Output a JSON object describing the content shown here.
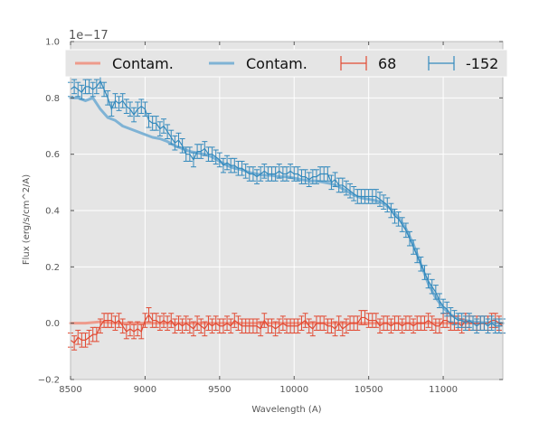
{
  "chart_data": {
    "type": "line",
    "title": "",
    "xlabel": "Wavelength (A)",
    "ylabel": "Flux (erg/s/cm^2/A)",
    "y_offset_label": "1e−17",
    "xlim": [
      8500,
      11400
    ],
    "ylim": [
      -0.2,
      1.0
    ],
    "xticks": [
      8500,
      9000,
      9500,
      10000,
      10500,
      11000
    ],
    "yticks": [
      -0.2,
      0.0,
      0.2,
      0.4,
      0.6,
      0.8,
      1.0
    ],
    "xtick_labels": [
      "8500",
      "9000",
      "9500",
      "10000",
      "10500",
      "11000"
    ],
    "ytick_labels": [
      "−0.2",
      "0.0",
      "0.2",
      "0.4",
      "0.6",
      "0.8",
      "1.0"
    ],
    "grid": true,
    "legend_position": "top",
    "colors": {
      "red": "#e24a33",
      "blue": "#348abd",
      "red_light": "#ee9b8c",
      "blue_light": "#7fb3d5",
      "plot_bg": "#e5e5e5",
      "grid": "#ffffff",
      "legend_bg": "#e5e5e5"
    },
    "series": [
      {
        "name": "Contam.",
        "kind": "contam",
        "color": "#ee9b8c",
        "x": [
          8500,
          8600,
          8700,
          8800,
          9000,
          9500,
          10000,
          10500,
          11000,
          11400
        ],
        "y": [
          0.0,
          0.0,
          0.005,
          0.0,
          0.0,
          0.0,
          0.0,
          0.0,
          0.0,
          0.0
        ]
      },
      {
        "name": "Contam.",
        "kind": "contam",
        "color": "#7fb3d5",
        "x": [
          8500,
          8550,
          8600,
          8650,
          8700,
          8750,
          8800,
          8850,
          8900,
          8950,
          9000,
          9050,
          9100,
          9150,
          9200,
          9250,
          9300,
          9350,
          9400,
          9450,
          9500,
          9550,
          9600,
          9650,
          9700,
          9750,
          9800,
          9850,
          9900,
          9950,
          10000,
          10050,
          10100,
          10150,
          10200,
          10250,
          10300,
          10350,
          10400,
          10450,
          10500,
          10550,
          10600,
          10650,
          10700,
          10750,
          10800,
          10850,
          10900,
          10950,
          11000,
          11050,
          11100,
          11150,
          11200,
          11250,
          11300,
          11350,
          11400
        ],
        "y": [
          0.8,
          0.8,
          0.79,
          0.8,
          0.76,
          0.73,
          0.72,
          0.7,
          0.69,
          0.68,
          0.67,
          0.66,
          0.655,
          0.645,
          0.63,
          0.62,
          0.61,
          0.605,
          0.6,
          0.59,
          0.575,
          0.56,
          0.55,
          0.545,
          0.535,
          0.53,
          0.525,
          0.525,
          0.52,
          0.52,
          0.515,
          0.51,
          0.505,
          0.505,
          0.5,
          0.495,
          0.485,
          0.47,
          0.455,
          0.445,
          0.44,
          0.435,
          0.425,
          0.405,
          0.375,
          0.335,
          0.28,
          0.21,
          0.14,
          0.09,
          0.055,
          0.03,
          0.015,
          0.01,
          0.005,
          0.003,
          0.002,
          0.001,
          0.0
        ]
      },
      {
        "name": "68",
        "kind": "errorbar",
        "color": "#e24a33",
        "x": [
          8500,
          8525,
          8550,
          8575,
          8600,
          8625,
          8650,
          8675,
          8700,
          8725,
          8750,
          8775,
          8800,
          8825,
          8850,
          8875,
          8900,
          8925,
          8950,
          8975,
          9000,
          9025,
          9050,
          9075,
          9100,
          9125,
          9150,
          9175,
          9200,
          9225,
          9250,
          9275,
          9300,
          9325,
          9350,
          9375,
          9400,
          9425,
          9450,
          9475,
          9500,
          9525,
          9550,
          9575,
          9600,
          9625,
          9650,
          9675,
          9700,
          9725,
          9750,
          9775,
          9800,
          9825,
          9850,
          9875,
          9900,
          9925,
          9950,
          9975,
          10000,
          10025,
          10050,
          10075,
          10100,
          10125,
          10150,
          10175,
          10200,
          10225,
          10250,
          10275,
          10300,
          10325,
          10350,
          10375,
          10400,
          10425,
          10450,
          10475,
          10500,
          10525,
          10550,
          10575,
          10600,
          10625,
          10650,
          10675,
          10700,
          10725,
          10750,
          10775,
          10800,
          10825,
          10850,
          10875,
          10900,
          10925,
          10950,
          10975,
          11000,
          11025,
          11050,
          11075,
          11100,
          11125,
          11150,
          11175,
          11200,
          11225,
          11250,
          11275,
          11300,
          11325,
          11350,
          11375,
          11400
        ],
        "y": [
          -0.06,
          -0.07,
          -0.05,
          -0.06,
          -0.06,
          -0.05,
          -0.04,
          -0.04,
          -0.01,
          0.01,
          0.01,
          0.01,
          0.0,
          0.01,
          -0.01,
          -0.03,
          -0.02,
          -0.03,
          -0.02,
          -0.03,
          0.01,
          0.03,
          0.01,
          0.01,
          0.0,
          0.01,
          0.0,
          0.01,
          -0.01,
          0.0,
          -0.01,
          0.0,
          -0.01,
          -0.02,
          0.0,
          -0.01,
          -0.02,
          0.0,
          -0.01,
          0.0,
          -0.01,
          -0.01,
          0.0,
          -0.01,
          0.01,
          0.0,
          -0.01,
          -0.01,
          -0.01,
          -0.01,
          -0.01,
          -0.02,
          0.01,
          -0.01,
          -0.01,
          -0.02,
          -0.01,
          0.0,
          -0.01,
          -0.01,
          -0.01,
          -0.01,
          0.0,
          0.01,
          -0.01,
          -0.02,
          0.0,
          0.0,
          0.0,
          -0.01,
          -0.01,
          -0.02,
          0.0,
          -0.02,
          -0.01,
          0.0,
          0.0,
          0.0,
          0.02,
          0.02,
          0.01,
          0.01,
          0.01,
          -0.01,
          0.0,
          0.0,
          -0.01,
          0.0,
          0.0,
          -0.01,
          0.0,
          0.0,
          -0.01,
          0.0,
          0.0,
          0.0,
          0.01,
          0.0,
          -0.01,
          -0.01,
          0.01,
          0.01,
          0.0,
          0.0,
          0.0,
          -0.01,
          0.01,
          0.0,
          0.0,
          0.0,
          0.0,
          0.0,
          0.0,
          0.01,
          0.01,
          0.0,
          -0.01
        ],
        "err": 0.025
      },
      {
        "name": "-152",
        "kind": "errorbar",
        "color": "#348abd",
        "x": [
          8500,
          8525,
          8550,
          8575,
          8600,
          8625,
          8650,
          8675,
          8700,
          8725,
          8750,
          8775,
          8800,
          8825,
          8850,
          8875,
          8900,
          8925,
          8950,
          8975,
          9000,
          9025,
          9050,
          9075,
          9100,
          9125,
          9150,
          9175,
          9200,
          9225,
          9250,
          9275,
          9300,
          9325,
          9350,
          9375,
          9400,
          9425,
          9450,
          9475,
          9500,
          9525,
          9550,
          9575,
          9600,
          9625,
          9650,
          9675,
          9700,
          9725,
          9750,
          9775,
          9800,
          9825,
          9850,
          9875,
          9900,
          9925,
          9950,
          9975,
          10000,
          10025,
          10050,
          10075,
          10100,
          10125,
          10150,
          10175,
          10200,
          10225,
          10250,
          10275,
          10300,
          10325,
          10350,
          10375,
          10400,
          10425,
          10450,
          10475,
          10500,
          10525,
          10550,
          10575,
          10600,
          10625,
          10650,
          10675,
          10700,
          10725,
          10750,
          10775,
          10800,
          10825,
          10850,
          10875,
          10900,
          10925,
          10950,
          10975,
          11000,
          11025,
          11050,
          11075,
          11100,
          11125,
          11150,
          11175,
          11200,
          11225,
          11250,
          11275,
          11300,
          11325,
          11350,
          11375,
          11400
        ],
        "y": [
          0.83,
          0.84,
          0.83,
          0.82,
          0.84,
          0.84,
          0.83,
          0.84,
          0.86,
          0.83,
          0.8,
          0.76,
          0.79,
          0.78,
          0.79,
          0.77,
          0.76,
          0.74,
          0.76,
          0.77,
          0.76,
          0.72,
          0.71,
          0.71,
          0.69,
          0.7,
          0.68,
          0.66,
          0.64,
          0.65,
          0.63,
          0.6,
          0.6,
          0.58,
          0.61,
          0.61,
          0.62,
          0.6,
          0.6,
          0.59,
          0.58,
          0.56,
          0.57,
          0.56,
          0.56,
          0.55,
          0.55,
          0.54,
          0.53,
          0.53,
          0.52,
          0.53,
          0.54,
          0.53,
          0.53,
          0.53,
          0.54,
          0.53,
          0.53,
          0.54,
          0.53,
          0.53,
          0.52,
          0.52,
          0.51,
          0.52,
          0.52,
          0.53,
          0.53,
          0.53,
          0.5,
          0.51,
          0.49,
          0.49,
          0.48,
          0.47,
          0.46,
          0.45,
          0.45,
          0.45,
          0.45,
          0.45,
          0.45,
          0.44,
          0.43,
          0.42,
          0.4,
          0.38,
          0.37,
          0.35,
          0.33,
          0.3,
          0.27,
          0.24,
          0.21,
          0.18,
          0.15,
          0.13,
          0.11,
          0.08,
          0.06,
          0.05,
          0.03,
          0.02,
          0.01,
          0.01,
          0.0,
          0.01,
          0.0,
          -0.01,
          0.0,
          0.0,
          -0.01,
          0.0,
          -0.01,
          -0.01,
          -0.01
        ],
        "err": 0.025
      }
    ]
  }
}
